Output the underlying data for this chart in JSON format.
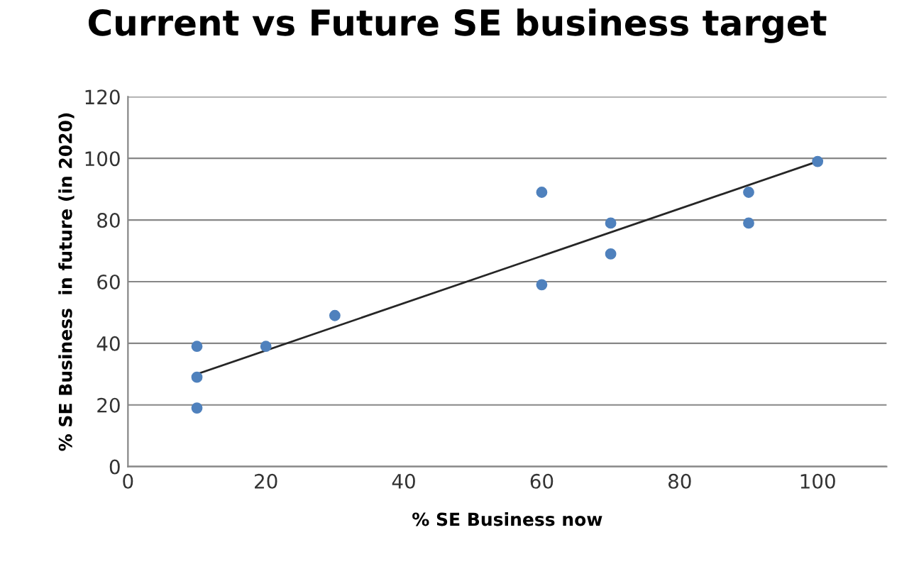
{
  "chart_data": {
    "type": "scatter",
    "title": "Current vs Future SE business target",
    "xlabel": "% SE Business now",
    "ylabel": "% SE Business  in future (in 2020)",
    "xlim": [
      0,
      110
    ],
    "xticks": [
      0,
      20,
      40,
      60,
      80,
      100
    ],
    "ylim": [
      0,
      120
    ],
    "yticks": [
      0,
      20,
      40,
      60,
      80,
      100,
      120
    ],
    "grid": "y",
    "series": [
      {
        "marker": "circle",
        "color": "#4f81bd",
        "x": [
          10,
          10,
          10,
          20,
          30,
          60,
          60,
          70,
          70,
          90,
          90,
          100
        ],
        "values": [
          39,
          29,
          19,
          39,
          49,
          89,
          59,
          79,
          69,
          89,
          79,
          99
        ]
      },
      {
        "type": "line",
        "marker": "none",
        "color": "#262626",
        "x": [
          10,
          100
        ],
        "values": [
          30,
          99
        ]
      }
    ]
  }
}
